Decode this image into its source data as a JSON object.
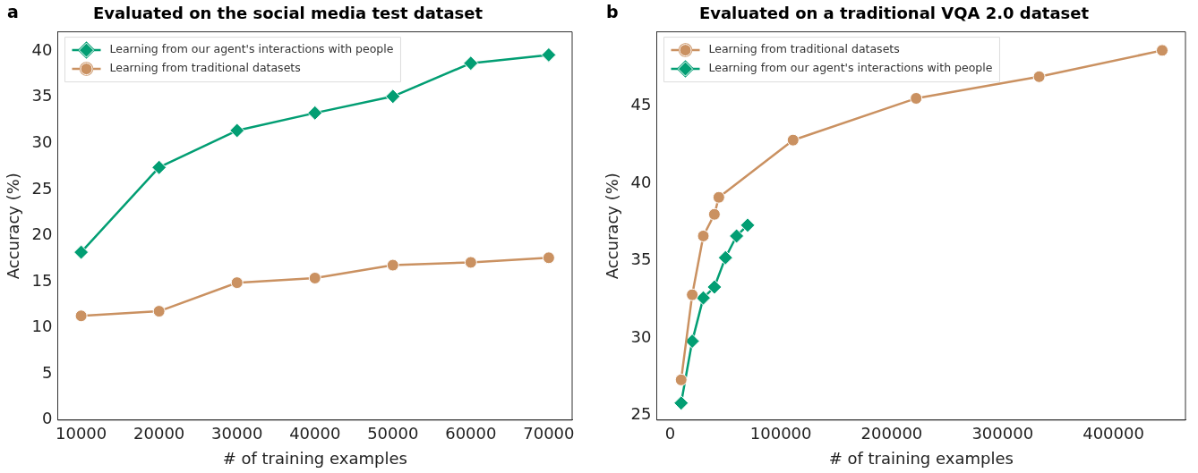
{
  "chart_data": [
    {
      "type": "line",
      "title": "Evaluated on the social media test dataset",
      "xlabel": "# of training examples",
      "ylabel": "Accuracy (%)",
      "annotations": [
        "a"
      ],
      "x": [
        10000,
        20000,
        30000,
        40000,
        50000,
        60000,
        70000
      ],
      "series": [
        {
          "name": "Learning from our agent's interactions with people",
          "color": "#029e73",
          "marker": "diamond",
          "values": [
            18.2,
            27.4,
            31.4,
            33.3,
            35.1,
            38.7,
            39.6
          ]
        },
        {
          "name": "Learning from traditional datasets",
          "color": "#ca9161",
          "marker": "circle",
          "values": [
            11.3,
            11.8,
            14.9,
            15.4,
            16.8,
            17.1,
            17.6
          ]
        }
      ],
      "xlim": [
        7000,
        73000
      ],
      "xticks": [
        10000,
        20000,
        30000,
        40000,
        50000,
        60000,
        70000
      ],
      "ylim": [
        0,
        42.1
      ],
      "yticks": [
        0,
        5,
        10,
        15,
        20,
        25,
        30,
        35,
        40
      ],
      "grid": false,
      "legend": "top left",
      "line_style": "solid"
    },
    {
      "type": "line",
      "title": "Evaluated on a traditional VQA 2.0 dataset",
      "xlabel": "# of training examples",
      "ylabel": "Accuracy (%)",
      "annotations": [
        "b"
      ],
      "series": [
        {
          "name": "Learning from traditional datasets",
          "color": "#ca9161",
          "marker": "circle",
          "x": [
            10000,
            20000,
            30000,
            40000,
            44000,
            111000,
            222000,
            333000,
            444000
          ],
          "values": [
            27.3,
            32.8,
            36.6,
            38.0,
            39.1,
            42.8,
            45.5,
            46.9,
            48.6
          ]
        },
        {
          "name": "Learning from our agent's interactions with people",
          "color": "#029e73",
          "marker": "diamond",
          "x": [
            10000,
            20000,
            30000,
            40000,
            50000,
            60000,
            70000
          ],
          "values": [
            25.8,
            29.8,
            32.6,
            33.3,
            35.2,
            36.6,
            37.3
          ]
        }
      ],
      "xlim": [
        -12000,
        465000
      ],
      "xticks": [
        0,
        100000,
        200000,
        300000,
        400000
      ],
      "ylim": [
        24.7,
        49.8
      ],
      "yticks": [
        25,
        30,
        35,
        40,
        45
      ],
      "grid": false,
      "legend": "top left",
      "line_style": "solid"
    }
  ]
}
